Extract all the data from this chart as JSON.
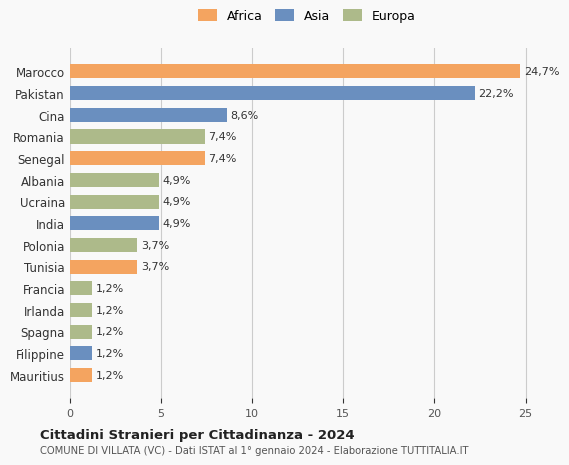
{
  "countries": [
    "Mauritius",
    "Filippine",
    "Spagna",
    "Irlanda",
    "Francia",
    "Tunisia",
    "Polonia",
    "India",
    "Ucraina",
    "Albania",
    "Senegal",
    "Romania",
    "Cina",
    "Pakistan",
    "Marocco"
  ],
  "values": [
    1.2,
    1.2,
    1.2,
    1.2,
    1.2,
    3.7,
    3.7,
    4.9,
    4.9,
    4.9,
    7.4,
    7.4,
    8.6,
    22.2,
    24.7
  ],
  "labels": [
    "1,2%",
    "1,2%",
    "1,2%",
    "1,2%",
    "1,2%",
    "3,7%",
    "3,7%",
    "4,9%",
    "4,9%",
    "4,9%",
    "7,4%",
    "7,4%",
    "8,6%",
    "22,2%",
    "24,7%"
  ],
  "continents": [
    "Africa",
    "Asia",
    "Europa",
    "Europa",
    "Europa",
    "Africa",
    "Europa",
    "Asia",
    "Europa",
    "Europa",
    "Africa",
    "Europa",
    "Asia",
    "Asia",
    "Africa"
  ],
  "colors": {
    "Africa": "#F4A460",
    "Asia": "#6A8FBF",
    "Europa": "#ADBA8A"
  },
  "legend_colors": {
    "Africa": "#F4A460",
    "Asia": "#6A8FBF",
    "Europa": "#ADBA8A"
  },
  "title": "Cittadini Stranieri per Cittadinanza - 2024",
  "subtitle": "COMUNE DI VILLATA (VC) - Dati ISTAT al 1° gennaio 2024 - Elaborazione TUTTITALIA.IT",
  "xlim": [
    0,
    26
  ],
  "xticks": [
    0,
    5,
    10,
    15,
    20,
    25
  ],
  "background_color": "#f9f9f9",
  "grid_color": "#cccccc"
}
